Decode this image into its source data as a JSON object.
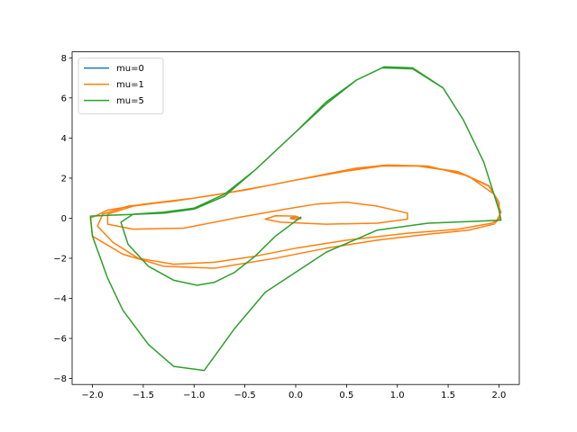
{
  "chart_data": {
    "type": "line",
    "title": "",
    "xlabel": "",
    "ylabel": "",
    "xlim": [
      -2.2,
      2.2
    ],
    "ylim": [
      -8.3,
      8.3
    ],
    "xticks": [
      -2.0,
      -1.5,
      -1.0,
      -0.5,
      0.0,
      0.5,
      1.0,
      1.5,
      2.0
    ],
    "xtick_labels": [
      "−2.0",
      "−1.5",
      "−1.0",
      "−0.5",
      "0.0",
      "0.5",
      "1.0",
      "1.5",
      "2.0"
    ],
    "yticks": [
      -8,
      -6,
      -4,
      -2,
      0,
      2,
      4,
      6,
      8
    ],
    "ytick_labels": [
      "−8",
      "−6",
      "−4",
      "−2",
      "0",
      "2",
      "4",
      "6",
      "8"
    ],
    "grid": false,
    "legend_placement": "top-left",
    "series": [
      {
        "name": "mu=0",
        "color": "#1f77b4",
        "points": [
          [
            -0.05,
            0.02
          ],
          [
            0.0,
            0.05
          ],
          [
            0.05,
            0.02
          ],
          [
            0.05,
            -0.02
          ],
          [
            0.0,
            -0.05
          ],
          [
            -0.05,
            -0.02
          ],
          [
            -0.05,
            0.02
          ]
        ]
      },
      {
        "name": "mu=1",
        "color": "#ff7f0e",
        "points": [
          [
            0.05,
            0.0
          ],
          [
            0.02,
            0.05
          ],
          [
            -0.02,
            0.04
          ],
          [
            -0.05,
            0.0
          ],
          [
            -0.02,
            -0.05
          ],
          [
            0.03,
            -0.04
          ],
          [
            0.05,
            0.0
          ],
          [
            0.0,
            0.1
          ],
          [
            -0.2,
            0.12
          ],
          [
            -0.3,
            -0.05
          ],
          [
            -0.15,
            -0.2
          ],
          [
            0.3,
            -0.3
          ],
          [
            0.8,
            -0.25
          ],
          [
            1.1,
            -0.05
          ],
          [
            1.1,
            0.25
          ],
          [
            0.8,
            0.6
          ],
          [
            0.5,
            0.8
          ],
          [
            0.2,
            0.7
          ],
          [
            -0.1,
            0.45
          ],
          [
            -0.6,
            0.0
          ],
          [
            -1.1,
            -0.5
          ],
          [
            -1.6,
            -0.55
          ],
          [
            -1.85,
            -0.3
          ],
          [
            -1.85,
            0.2
          ],
          [
            -1.6,
            0.6
          ],
          [
            -1.0,
            1.0
          ],
          [
            -0.5,
            1.4
          ],
          [
            0.0,
            1.9
          ],
          [
            0.5,
            2.35
          ],
          [
            0.85,
            2.6
          ],
          [
            1.2,
            2.6
          ],
          [
            1.6,
            2.3
          ],
          [
            1.9,
            1.6
          ],
          [
            2.0,
            0.8
          ],
          [
            2.01,
            0.0
          ],
          [
            1.95,
            -0.3
          ],
          [
            1.7,
            -0.6
          ],
          [
            1.3,
            -0.8
          ],
          [
            0.8,
            -1.1
          ],
          [
            0.3,
            -1.5
          ],
          [
            -0.2,
            -2.0
          ],
          [
            -0.8,
            -2.5
          ],
          [
            -1.3,
            -2.4
          ],
          [
            -1.7,
            -1.8
          ],
          [
            -2.0,
            -0.9
          ],
          [
            -2.02,
            0.0
          ],
          [
            -1.85,
            0.4
          ],
          [
            -1.5,
            0.7
          ],
          [
            -1.0,
            1.0
          ],
          [
            -0.5,
            1.4
          ],
          [
            0.0,
            1.9
          ],
          [
            0.5,
            2.35
          ],
          [
            0.85,
            2.63
          ],
          [
            1.2,
            2.62
          ],
          [
            1.6,
            2.32
          ],
          [
            1.9,
            1.62
          ],
          [
            2.0,
            0.8
          ],
          [
            2.01,
            0.0
          ],
          [
            1.93,
            -0.25
          ],
          [
            1.6,
            -0.55
          ],
          [
            1.1,
            -0.75
          ],
          [
            0.5,
            -1.1
          ],
          [
            0.0,
            -1.5
          ],
          [
            -0.4,
            -1.9
          ],
          [
            -0.8,
            -2.2
          ],
          [
            -1.2,
            -2.3
          ],
          [
            -1.55,
            -2.0
          ],
          [
            -1.8,
            -1.2
          ],
          [
            -1.95,
            -0.4
          ],
          [
            -1.9,
            0.2
          ],
          [
            -1.65,
            0.6
          ],
          [
            -1.2,
            0.85
          ],
          [
            -0.8,
            1.15
          ],
          [
            -0.3,
            1.6
          ],
          [
            0.2,
            2.1
          ],
          [
            0.6,
            2.5
          ],
          [
            0.9,
            2.65
          ],
          [
            1.3,
            2.6
          ],
          [
            1.7,
            2.1
          ],
          [
            1.95,
            1.2
          ],
          [
            2.02,
            0.3
          ],
          [
            1.98,
            -0.1
          ]
        ]
      },
      {
        "name": "mu=5",
        "color": "#2ca02c",
        "points": [
          [
            0.05,
            0.05
          ],
          [
            -0.2,
            -0.9
          ],
          [
            -0.4,
            -1.9
          ],
          [
            -0.6,
            -2.7
          ],
          [
            -0.8,
            -3.2
          ],
          [
            -0.97,
            -3.35
          ],
          [
            -1.2,
            -3.1
          ],
          [
            -1.45,
            -2.4
          ],
          [
            -1.65,
            -1.3
          ],
          [
            -1.72,
            -0.2
          ],
          [
            -1.6,
            0.2
          ],
          [
            -1.3,
            0.3
          ],
          [
            -1.0,
            0.5
          ],
          [
            -0.7,
            1.2
          ],
          [
            -0.4,
            2.4
          ],
          [
            0.0,
            4.3
          ],
          [
            0.3,
            5.7
          ],
          [
            0.6,
            6.9
          ],
          [
            0.85,
            7.5
          ],
          [
            1.15,
            7.45
          ],
          [
            1.45,
            6.5
          ],
          [
            1.65,
            4.9
          ],
          [
            1.85,
            2.8
          ],
          [
            2.0,
            0.4
          ],
          [
            2.02,
            -0.1
          ],
          [
            1.8,
            -0.15
          ],
          [
            1.3,
            -0.25
          ],
          [
            0.8,
            -0.6
          ],
          [
            0.3,
            -1.7
          ],
          [
            -0.3,
            -3.7
          ],
          [
            -0.6,
            -5.5
          ],
          [
            -0.9,
            -7.6
          ],
          [
            -1.2,
            -7.4
          ],
          [
            -1.45,
            -6.3
          ],
          [
            -1.7,
            -4.6
          ],
          [
            -1.85,
            -3.0
          ],
          [
            -2.0,
            -0.9
          ],
          [
            -2.02,
            0.1
          ],
          [
            -1.8,
            0.15
          ],
          [
            -1.3,
            0.25
          ],
          [
            -1.0,
            0.45
          ],
          [
            -0.7,
            1.1
          ],
          [
            -0.4,
            2.4
          ],
          [
            0.0,
            4.3
          ],
          [
            0.3,
            5.8
          ],
          [
            0.6,
            6.9
          ],
          [
            0.87,
            7.55
          ],
          [
            1.15,
            7.5
          ],
          [
            1.45,
            6.5
          ],
          [
            1.65,
            4.9
          ],
          [
            1.85,
            2.8
          ],
          [
            2.0,
            0.4
          ],
          [
            2.02,
            -0.1
          ]
        ]
      }
    ]
  }
}
